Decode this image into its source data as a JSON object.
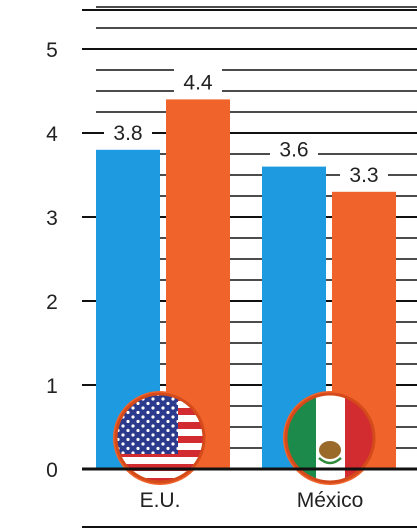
{
  "chart_data": {
    "type": "bar",
    "categories": [
      "E.U.",
      "México"
    ],
    "series": [
      {
        "values": [
          3.8,
          3.6
        ],
        "color": "#1e9ae0"
      },
      {
        "values": [
          4.4,
          3.3
        ],
        "color": "#f0632a"
      }
    ],
    "data_labels": [
      [
        "3.8",
        "3.6"
      ],
      [
        "4.4",
        "3.3"
      ]
    ],
    "yticks": [
      "0",
      "1",
      "2",
      "3",
      "4",
      "5"
    ],
    "ylim": [
      0,
      5.5
    ],
    "grid": true,
    "title": "",
    "xlabel": "",
    "ylabel": "",
    "flag_icons": [
      "us-flag-icon",
      "mexico-flag-icon"
    ]
  }
}
